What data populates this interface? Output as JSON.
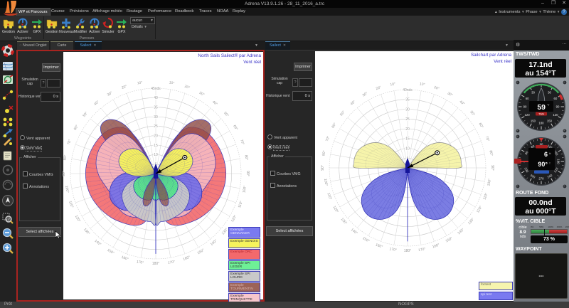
{
  "window": {
    "title": "Adrena V13.9.1.26 - 28_11_2016_a.trc",
    "minimize": "–",
    "maximize": "❐",
    "close": "✕"
  },
  "menu": {
    "items": [
      "WP et Parcours",
      "Course",
      "Prévisions",
      "Affichage météo",
      "Routage",
      "Performance",
      "Roadbook",
      "Traces",
      "NOAA",
      "Replay"
    ],
    "active_index": 0,
    "collapse_icon": "▲",
    "right_items": [
      "Instruments",
      "Phase",
      "Thème"
    ],
    "help": "?"
  },
  "ribbon": {
    "groups": [
      {
        "label": "Waypoints",
        "buttons": [
          {
            "label": "Gestion",
            "icon": "folder"
          },
          {
            "label": "Activer",
            "icon": "power"
          },
          {
            "label": "GPX",
            "icon": "gpx"
          }
        ]
      },
      {
        "label": "Parcours",
        "buttons": [
          {
            "label": "Gestion",
            "icon": "folder"
          },
          {
            "label": "Nouveau",
            "icon": "plus"
          },
          {
            "label": "Modifier",
            "icon": "wrench"
          },
          {
            "label": "Activer",
            "icon": "power"
          },
          {
            "label": "Simuler",
            "icon": "simulate"
          },
          {
            "label": "GPX",
            "icon": "gpx"
          }
        ]
      }
    ],
    "combo_value": "aucun",
    "details_label": "Détails"
  },
  "tab_bars": {
    "left": [
      {
        "label": "Nouvel Onglet",
        "icon": "target",
        "active": false
      },
      {
        "label": "Carte",
        "active": false
      },
      {
        "label": "Sailect",
        "active": true,
        "close": "✕"
      }
    ],
    "right": [
      {
        "label": "Sailect",
        "active": true,
        "close": "✕"
      }
    ]
  },
  "sidebar": {
    "icons": [
      "life-ring",
      "chart-map",
      "map-route",
      "route-waypoints",
      "waypoint-marker",
      "waypoints-group",
      "bearing-arrow",
      "edit-route",
      "logbook",
      "circle-tool-a",
      "circle-tool-b",
      "pan-tool",
      "zoom-selection",
      "zoom-out",
      "zoom-in"
    ]
  },
  "controls": {
    "print": "Imprimer",
    "sim_label": "Simulation cap",
    "sim_help": "?",
    "history_label": "Historique vent",
    "history_value": "0 s",
    "radio_apparent": "Vent apparent",
    "radio_real": "Vent réel",
    "group_label": "Afficher",
    "check_vmg": "Courbes VMG",
    "check_annot": "Annotations",
    "select_button": "Select affichées"
  },
  "chart_data": [
    {
      "type": "polar-sail",
      "title": "North Sails Sailect® par Adrena",
      "subtitle": "Vent réel",
      "r_unit": "nds",
      "r_max": 45,
      "r_step": 5,
      "angle_step_deg": 10,
      "wind_arrow": {
        "angle_deg": 61,
        "length_kt": 17.5
      },
      "series": [
        {
          "name": "Exemple ORC",
          "color": "#f3696c",
          "edge": "#3a3ab8",
          "alpha": 0.9,
          "profile": [
            [
              25,
              0
            ],
            [
              26,
              12
            ],
            [
              28,
              20
            ],
            [
              32,
              27
            ],
            [
              38,
              31
            ],
            [
              48,
              34
            ],
            [
              60,
              35.5
            ],
            [
              75,
              36.5
            ],
            [
              90,
              37
            ],
            [
              105,
              36.5
            ],
            [
              120,
              35
            ],
            [
              135,
              33
            ],
            [
              148,
              31
            ],
            [
              158,
              29.5
            ],
            [
              166,
              27
            ],
            [
              171,
              22
            ],
            [
              174,
              14
            ],
            [
              176,
              0
            ]
          ]
        },
        {
          "name": "Exemple TOURMENTIN",
          "color": "#8d4a42",
          "edge": "#3a3ab8",
          "alpha": 0.8,
          "profile": [
            [
              27,
              0
            ],
            [
              28,
              14
            ],
            [
              30,
              24
            ],
            [
              33,
              31
            ],
            [
              38,
              36
            ],
            [
              44,
              38.5
            ],
            [
              50,
              38
            ],
            [
              55,
              34
            ],
            [
              59,
              27
            ],
            [
              62,
              18
            ],
            [
              65,
              8
            ],
            [
              67,
              0
            ]
          ]
        },
        {
          "name": "Exemple TRINQUETTE",
          "color": "#f6b9c0",
          "edge": "#3a3ab8",
          "alpha": 0.9,
          "profile": [
            [
              29,
              0
            ],
            [
              30,
              12
            ],
            [
              33,
              20
            ],
            [
              38,
              26
            ],
            [
              45,
              29.5
            ],
            [
              55,
              31.5
            ],
            [
              67,
              32.5
            ],
            [
              80,
              32
            ],
            [
              92,
              30
            ],
            [
              103,
              27.5
            ],
            [
              115,
              26
            ],
            [
              128,
              26.5
            ],
            [
              140,
              27
            ],
            [
              152,
              26
            ],
            [
              162,
              23.5
            ],
            [
              169,
              19
            ],
            [
              173,
              12
            ],
            [
              176,
              0
            ]
          ]
        },
        {
          "name": "Exemple GENNAKER",
          "color": "#6a6aea",
          "edge": "#2a2ab0",
          "alpha": 0.85,
          "profile": [
            [
              80,
              0
            ],
            [
              83,
              8
            ],
            [
              87,
              14
            ],
            [
              93,
              19
            ],
            [
              101,
              23
            ],
            [
              111,
              26
            ],
            [
              122,
              27.5
            ],
            [
              134,
              26.5
            ],
            [
              145,
              24
            ],
            [
              155,
              20
            ],
            [
              163,
              14
            ],
            [
              169,
              8
            ],
            [
              173,
              0
            ]
          ]
        },
        {
          "name": "Exemple SPI LOURD",
          "color": "#c8c8c8",
          "edge": "#3a3ab8",
          "alpha": 0.95,
          "profile": [
            [
              98,
              0
            ],
            [
              101,
              8
            ],
            [
              106,
              13
            ],
            [
              113,
              17.5
            ],
            [
              122,
              21
            ],
            [
              132,
              23
            ],
            [
              143,
              24.5
            ],
            [
              155,
              25
            ],
            [
              166,
              25.5
            ],
            [
              174,
              25.5
            ],
            [
              180,
              25.5
            ]
          ]
        },
        {
          "name": "Exemple SPI LEGER",
          "color": "#58e98a",
          "edge": "#2a2ab0",
          "alpha": 0.95,
          "profile": [
            [
              96,
              0
            ],
            [
              99,
              6
            ],
            [
              104,
              9.5
            ],
            [
              111,
              12
            ],
            [
              120,
              13.5
            ],
            [
              130,
              14.5
            ],
            [
              142,
              15
            ],
            [
              154,
              15
            ],
            [
              165,
              14.5
            ],
            [
              173,
              13.5
            ],
            [
              180,
              13
            ]
          ]
        },
        {
          "name": "Exemple TOURMENTIN",
          "color": "#8d4a42",
          "edge": "#3a3ab8",
          "alpha": 0.7,
          "profile": [
            [
              142,
              0
            ],
            [
              146,
              8
            ],
            [
              151,
              13
            ],
            [
              157,
              17
            ],
            [
              163,
              18
            ],
            [
              169,
              16
            ],
            [
              173,
              12
            ],
            [
              176,
              6
            ],
            [
              178,
              0
            ]
          ]
        },
        {
          "name": "Exemple GENOIS",
          "color": "#f6f35c",
          "edge": "#3a3ab8",
          "alpha": 0.95,
          "profile": [
            [
              27,
              0
            ],
            [
              28,
              8
            ],
            [
              31,
              12
            ],
            [
              36,
              15.5
            ],
            [
              43,
              18
            ],
            [
              52,
              20
            ],
            [
              62,
              21
            ],
            [
              72,
              20.5
            ],
            [
              81,
              18.5
            ],
            [
              89,
              15.5
            ],
            [
              96,
              11.5
            ],
            [
              102,
              7
            ],
            [
              106,
              3
            ],
            [
              108,
              0
            ]
          ]
        }
      ],
      "legend": [
        {
          "text": "Exemple\nGENNAKER",
          "bg": "#7a7af0",
          "fg": "#e8e8ff"
        },
        {
          "text": "Exemple GENOIS",
          "bg": "#f6f35c",
          "fg": "#333333"
        },
        {
          "text": "Exemple ORC",
          "bg": "#f3696c",
          "fg": "#b5232c"
        },
        {
          "text": "Exemple SPI\nLEGER",
          "bg": "#6ef096",
          "fg": "#333333"
        },
        {
          "text": "Exemple SPI\nLOURD",
          "bg": "#c9c9c9",
          "fg": "#333333"
        },
        {
          "text": "Exemple\nTOURMENTIN",
          "bg": "#9c6358",
          "fg": "#dcb8b4"
        },
        {
          "text": "Exemple\nTRINQUETTE",
          "bg": "#f7c6cc",
          "fg": "#333333"
        }
      ]
    },
    {
      "type": "polar-sail",
      "title": "Sailchart par Adrena",
      "subtitle": "Vent réel",
      "r_unit": "nds",
      "r_max": 40,
      "r_step": 5,
      "angle_step_deg": 10,
      "wind_arrow": {
        "angle_deg": 63,
        "length_kt": 17
      },
      "series": [
        {
          "name": "foctest",
          "color": "#f5f3a6",
          "edge": "#8a8a8a",
          "alpha": 0.95,
          "profile": [
            [
              36,
              0
            ],
            [
              37,
              8
            ],
            [
              40,
              13
            ],
            [
              45,
              17
            ],
            [
              52,
              21
            ],
            [
              60,
              24
            ],
            [
              69,
              26.5
            ],
            [
              78,
              27.5
            ],
            [
              85,
              27.5
            ],
            [
              90,
              26.5
            ],
            [
              90,
              13
            ]
          ]
        },
        {
          "name": "spi test",
          "color": "#5e60dd",
          "edge": "#2a2ab0",
          "alpha": 0.82,
          "profile": [
            [
              102,
              0
            ],
            [
              104,
              9
            ],
            [
              108,
              16
            ],
            [
              114,
              22
            ],
            [
              121,
              27
            ],
            [
              129,
              30
            ],
            [
              138,
              31.5
            ],
            [
              147,
              31
            ],
            [
              156,
              28.5
            ],
            [
              164,
              24
            ],
            [
              170,
              17
            ],
            [
              174,
              9
            ],
            [
              177,
              0
            ]
          ]
        }
      ],
      "legend": [
        {
          "text": "foctest",
          "bg": "#f6f4ae",
          "fg": "#666655"
        },
        {
          "text": "spi test",
          "bg": "#7a7af0",
          "fg": "#dcdcf8"
        }
      ]
    }
  ],
  "instruments": {
    "header": {
      "gear": "⚙",
      "more": "…"
    },
    "tws": {
      "label": "TWS/TWD",
      "value": "17.1nd",
      "value2": "au 154°T"
    },
    "twa_gauge": {
      "value": "59",
      "unit": "°T",
      "tag": "TWA",
      "numbers": [
        30,
        60,
        90,
        120,
        150,
        180
      ]
    },
    "compass_gauge": {
      "value1": "6",
      "value2": "90°",
      "numbers": [
        0,
        30,
        60,
        90,
        120,
        150,
        180,
        210,
        240,
        270,
        300,
        330
      ],
      "top_value": 90
    },
    "route": {
      "label": "ROUTE FOND",
      "value": "00.0nd",
      "value2": "au 000°T"
    },
    "vit": {
      "label": "%VIT. CIBLE",
      "cible": "cible",
      "cible_value": "8.9",
      "cible_unit": "nds",
      "scale": [
        "0%",
        "50%",
        "100%",
        "150%",
        "200%"
      ],
      "percent": "73 %",
      "percent_value": 73
    },
    "waypoint": {
      "label": "WAYPOINT",
      "value": "---"
    }
  },
  "statusbar": {
    "left": "Prêt",
    "center": "NOGPS"
  }
}
